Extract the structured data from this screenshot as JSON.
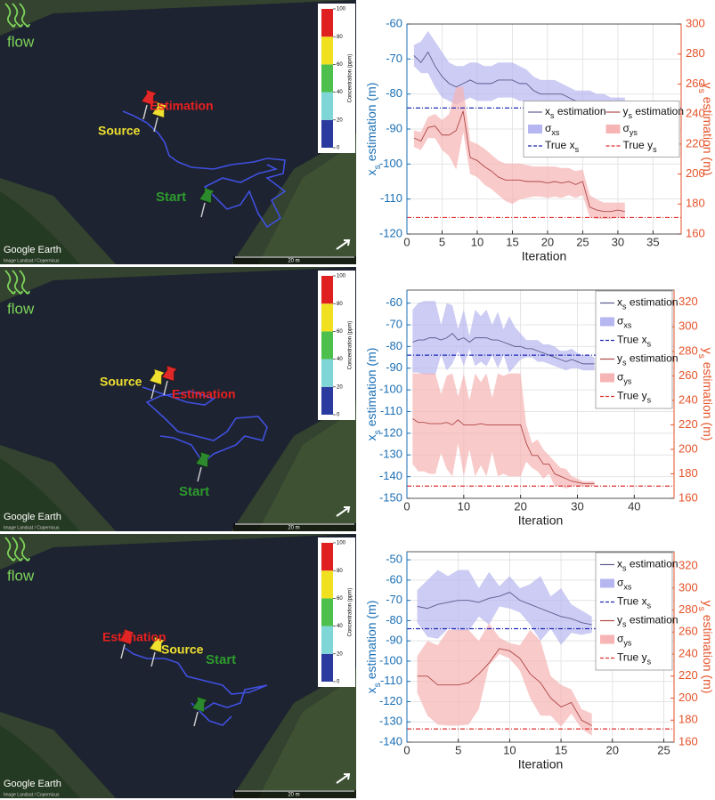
{
  "maps": [
    {
      "flow": "flow",
      "labels": {
        "estimation": "Estimation",
        "source": "Source",
        "start": "Start"
      },
      "credit": "Google Earth",
      "attribution": "Image Landsat / Copernicus",
      "scale": "20 m",
      "colorbar": {
        "label": "Concentration (ppm)",
        "lim": [
          0,
          100
        ],
        "ticks": [
          0,
          20,
          40,
          60,
          80,
          100
        ]
      }
    },
    {
      "flow": "flow",
      "labels": {
        "estimation": "Estimation",
        "source": "Source",
        "start": "Start"
      },
      "credit": "Google Earth",
      "attribution": "Image Landsat / Copernicus",
      "scale": "20 m",
      "colorbar": {
        "label": "Concentration (ppm)",
        "lim": [
          0,
          100
        ],
        "ticks": [
          0,
          20,
          40,
          60,
          80,
          100
        ]
      }
    },
    {
      "flow": "flow",
      "labels": {
        "estimation": "Estimation",
        "source": "Source",
        "start": "Start"
      },
      "credit": "Google Earth",
      "attribution": "Image Landsat / Copernicus",
      "scale": "20 m",
      "colorbar": {
        "label": "Concentration (ppm)",
        "lim": [
          0,
          100
        ],
        "ticks": [
          0,
          20,
          40,
          60,
          80,
          100
        ]
      }
    }
  ],
  "chart_data": [
    {
      "type": "line",
      "xlabel": "Iteration",
      "ylabel": "xs estimation (m)",
      "y2label": "ys estimation (m)",
      "xlim": [
        0,
        39
      ],
      "xticks": [
        0,
        5,
        10,
        15,
        20,
        25,
        30,
        35
      ],
      "ylim": [
        -120,
        -60
      ],
      "yticks": [
        -120,
        -110,
        -100,
        -90,
        -80,
        -70,
        -60
      ],
      "y2lim": [
        160,
        300
      ],
      "y2ticks": [
        160,
        180,
        200,
        220,
        240,
        260,
        280,
        300
      ],
      "grid": true,
      "legend": "center right",
      "legend_columns": 2,
      "x": [
        1,
        2,
        3,
        4,
        5,
        6,
        7,
        8,
        9,
        10,
        11,
        12,
        13,
        14,
        15,
        16,
        17,
        18,
        19,
        20,
        21,
        22,
        23,
        24,
        25,
        26,
        27,
        28,
        29,
        30,
        31
      ],
      "series": [
        {
          "name": "xs estimation",
          "color": "#5b5b8f",
          "axis": "y",
          "values": [
            -69,
            -71,
            -68,
            -72,
            -75,
            -77,
            -78,
            -77,
            -76,
            -77,
            -77,
            -77,
            -76,
            -76,
            -76,
            -77,
            -77,
            -79,
            -80,
            -80,
            -80,
            -80,
            -81,
            -82,
            -84,
            -83,
            -84,
            -83,
            -84,
            -84,
            -84
          ]
        },
        {
          "name": "σxs",
          "color": "#b6b6f0",
          "axis": "y",
          "lower": [
            -72,
            -74,
            -74,
            -78,
            -81,
            -82,
            -83,
            -82,
            -81,
            -82,
            -82,
            -82,
            -81,
            -81,
            -81,
            -82,
            -82,
            -83,
            -84,
            -84,
            -84,
            -84,
            -84,
            -86,
            -88,
            -87,
            -87,
            -86,
            -86,
            -86,
            -86
          ],
          "upper": [
            -66,
            -65,
            -62,
            -65,
            -68,
            -71,
            -72,
            -72,
            -71,
            -71,
            -72,
            -72,
            -71,
            -71,
            -71,
            -72,
            -73,
            -75,
            -76,
            -76,
            -76,
            -77,
            -78,
            -79,
            -79,
            -79,
            -80,
            -80,
            -81,
            -81,
            -81
          ]
        },
        {
          "name": "True xs",
          "color": "#1f2bb5",
          "axis": "y",
          "value": -84,
          "dash": true
        },
        {
          "name": "ys estimation",
          "color": "#b04848",
          "axis": "y2",
          "values": [
            224,
            222,
            231,
            232,
            226,
            226,
            229,
            242,
            211,
            209,
            205,
            202,
            198,
            196,
            196,
            196,
            195,
            195,
            195,
            194,
            195,
            194,
            195,
            193,
            195,
            178,
            176,
            175,
            175,
            176,
            175
          ]
        },
        {
          "name": "σys",
          "color": "#f7b4b4",
          "axis": "y2",
          "lower": [
            218,
            216,
            224,
            224,
            216,
            212,
            203,
            228,
            200,
            198,
            193,
            190,
            186,
            182,
            180,
            183,
            184,
            185,
            185,
            184,
            185,
            184,
            186,
            184,
            186,
            171,
            170,
            170,
            170,
            171,
            170
          ],
          "upper": [
            229,
            228,
            238,
            240,
            236,
            240,
            258,
            258,
            222,
            220,
            217,
            213,
            209,
            207,
            207,
            207,
            206,
            205,
            205,
            205,
            205,
            204,
            204,
            202,
            203,
            186,
            183,
            181,
            181,
            181,
            181
          ]
        },
        {
          "name": "True ys",
          "color": "#e03030",
          "axis": "y2",
          "value": 171,
          "dash": true
        }
      ]
    },
    {
      "type": "line",
      "xlabel": "Iteration",
      "ylabel": "xs estimation (m)",
      "y2label": "ys estimation (m)",
      "xlim": [
        0,
        47
      ],
      "xticks": [
        0,
        10,
        20,
        30,
        40
      ],
      "ylim": [
        -150,
        -54
      ],
      "yticks": [
        -150,
        -140,
        -130,
        -120,
        -110,
        -100,
        -90,
        -80,
        -70,
        -60
      ],
      "y2lim": [
        160,
        330
      ],
      "y2ticks": [
        160,
        180,
        200,
        220,
        240,
        260,
        280,
        300,
        320
      ],
      "grid": true,
      "legend": "upper right",
      "legend_columns": 1,
      "x": [
        1,
        2,
        3,
        4,
        5,
        6,
        7,
        8,
        9,
        10,
        11,
        12,
        13,
        14,
        15,
        16,
        17,
        18,
        19,
        20,
        21,
        22,
        23,
        24,
        25,
        26,
        27,
        28,
        29,
        30,
        31,
        32,
        33
      ],
      "series": [
        {
          "name": "xs estimation",
          "color": "#5b5b8f",
          "axis": "y",
          "values": [
            -78,
            -77,
            -77,
            -76,
            -76,
            -77,
            -76,
            -74,
            -77,
            -76,
            -78,
            -76,
            -76,
            -76,
            -77,
            -77,
            -78,
            -79,
            -80,
            -80,
            -81,
            -81,
            -82,
            -83,
            -84,
            -85,
            -86,
            -87,
            -86,
            -87,
            -88,
            -88,
            -88
          ]
        },
        {
          "name": "σxs",
          "color": "#b6b6f0",
          "axis": "y",
          "lower": [
            -92,
            -92,
            -93,
            -93,
            -93,
            -84,
            -91,
            -88,
            -82,
            -89,
            -81,
            -89,
            -87,
            -89,
            -84,
            -90,
            -84,
            -92,
            -89,
            -86,
            -85,
            -85,
            -87,
            -87,
            -88,
            -89,
            -90,
            -91,
            -90,
            -90,
            -91,
            -91,
            -91
          ],
          "upper": [
            -63,
            -60,
            -59,
            -59,
            -59,
            -70,
            -60,
            -61,
            -72,
            -63,
            -75,
            -63,
            -66,
            -63,
            -70,
            -64,
            -72,
            -66,
            -71,
            -74,
            -77,
            -77,
            -77,
            -79,
            -79,
            -80,
            -82,
            -82,
            -81,
            -83,
            -84,
            -84,
            -85
          ]
        },
        {
          "name": "True xs",
          "color": "#1f2bb5",
          "axis": "y",
          "value": -84,
          "dash": true
        },
        {
          "name": "ys estimation",
          "color": "#b04848",
          "axis": "y2",
          "values": [
            225,
            222,
            222,
            221,
            221,
            221,
            222,
            220,
            224,
            220,
            220,
            220,
            221,
            220,
            220,
            220,
            220,
            220,
            220,
            220,
            205,
            195,
            195,
            188,
            188,
            180,
            178,
            176,
            174,
            173,
            172,
            172,
            172
          ]
        },
        {
          "name": "σys",
          "color": "#f7b4b4",
          "axis": "y2",
          "lower": [
            188,
            182,
            182,
            180,
            180,
            197,
            184,
            178,
            205,
            178,
            200,
            178,
            187,
            178,
            198,
            178,
            180,
            178,
            178,
            178,
            190,
            185,
            182,
            176,
            180,
            170,
            170,
            168,
            170,
            170,
            170,
            170,
            170
          ],
          "upper": [
            262,
            262,
            262,
            262,
            262,
            245,
            260,
            262,
            243,
            262,
            240,
            262,
            255,
            262,
            242,
            262,
            260,
            262,
            262,
            262,
            220,
            205,
            208,
            200,
            195,
            190,
            185,
            184,
            178,
            176,
            174,
            174,
            174
          ]
        },
        {
          "name": "True ys",
          "color": "#e03030",
          "axis": "y2",
          "value": 170,
          "dash": true
        }
      ]
    },
    {
      "type": "line",
      "xlabel": "Iteration",
      "ylabel": "xs estimation (m)",
      "y2label": "ys estimation (m)",
      "xlim": [
        0,
        26
      ],
      "xticks": [
        0,
        5,
        10,
        15,
        20,
        25
      ],
      "ylim": [
        -140,
        -46
      ],
      "yticks": [
        -140,
        -130,
        -120,
        -110,
        -100,
        -90,
        -80,
        -70,
        -60,
        -50
      ],
      "y2lim": [
        160,
        333
      ],
      "y2ticks": [
        160,
        180,
        200,
        220,
        240,
        260,
        280,
        300,
        320
      ],
      "grid": true,
      "legend": "upper right",
      "legend_columns": 1,
      "x": [
        1,
        2,
        3,
        4,
        5,
        6,
        7,
        8,
        9,
        10,
        11,
        12,
        13,
        14,
        15,
        16,
        17,
        18
      ],
      "series": [
        {
          "name": "xs estimation",
          "color": "#5b5b8f",
          "axis": "y",
          "values": [
            -73,
            -74,
            -72,
            -71,
            -70,
            -70,
            -71,
            -69,
            -68,
            -66,
            -70,
            -72,
            -74,
            -76,
            -78,
            -79,
            -81,
            -82
          ]
        },
        {
          "name": "σxs",
          "color": "#b6b6f0",
          "axis": "y",
          "lower": [
            -81,
            -88,
            -89,
            -84,
            -85,
            -85,
            -78,
            -82,
            -73,
            -74,
            -76,
            -82,
            -90,
            -84,
            -92,
            -86,
            -87,
            -86
          ],
          "upper": [
            -65,
            -60,
            -55,
            -58,
            -55,
            -55,
            -64,
            -56,
            -63,
            -58,
            -64,
            -62,
            -58,
            -68,
            -64,
            -72,
            -75,
            -78
          ]
        },
        {
          "name": "True xs",
          "color": "#1f2bb5",
          "axis": "y",
          "value": -84,
          "dash": true
        },
        {
          "name": "ys estimation",
          "color": "#b04848",
          "axis": "y2",
          "values": [
            220,
            220,
            212,
            212,
            212,
            214,
            222,
            232,
            245,
            243,
            236,
            222,
            214,
            200,
            192,
            196,
            180,
            175
          ]
        },
        {
          "name": "σys",
          "color": "#f7b4b4",
          "axis": "y2",
          "lower": [
            205,
            184,
            176,
            175,
            175,
            176,
            190,
            230,
            240,
            236,
            225,
            200,
            184,
            184,
            174,
            186,
            172,
            166
          ],
          "upper": [
            238,
            252,
            248,
            262,
            262,
            262,
            252,
            268,
            255,
            250,
            248,
            262,
            252,
            220,
            212,
            208,
            190,
            186
          ]
        },
        {
          "name": "True ys",
          "color": "#e03030",
          "axis": "y2",
          "value": 172,
          "dash": true
        }
      ]
    }
  ]
}
